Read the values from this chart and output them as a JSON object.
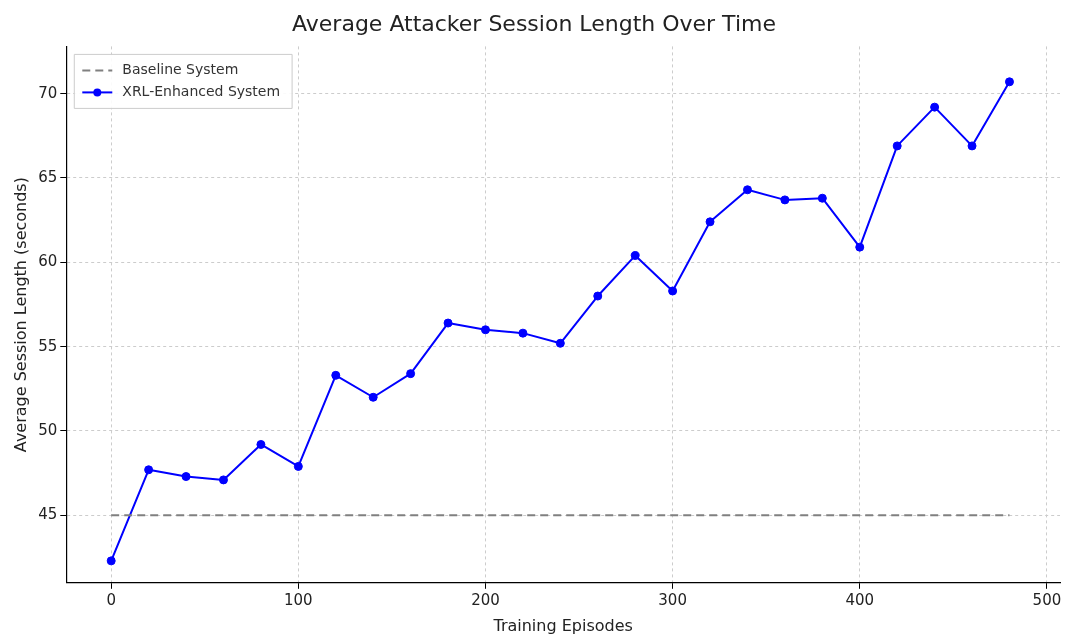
{
  "chart_data": {
    "type": "line",
    "title": "Average Attacker Session Length Over Time",
    "xlabel": "Training Episodes",
    "ylabel": "Average Session Length (seconds)",
    "xlim": [
      -24,
      507
    ],
    "xticks": [
      0,
      100,
      200,
      300,
      400,
      500
    ],
    "ylim": [
      41,
      72.8
    ],
    "yticks": [
      45,
      50,
      55,
      60,
      65,
      70
    ],
    "grid": true,
    "legend": "top left",
    "series": [
      {
        "name": "Baseline System",
        "color": "#808080",
        "line_style": "dashed",
        "marker": "none",
        "x": [
          0,
          480
        ],
        "values": [
          45,
          45
        ]
      },
      {
        "name": "XRL-Enhanced System",
        "color": "#0000ff",
        "line_style": "solid",
        "marker": "circle",
        "x": [
          0,
          20,
          40,
          60,
          80,
          100,
          120,
          140,
          160,
          180,
          200,
          220,
          240,
          260,
          280,
          300,
          320,
          340,
          360,
          380,
          400,
          420,
          440,
          460,
          480
        ],
        "values": [
          42.3,
          47.7,
          47.3,
          47.1,
          49.2,
          47.9,
          53.3,
          52.0,
          53.4,
          56.4,
          56.0,
          55.8,
          55.2,
          58.0,
          60.4,
          58.3,
          62.4,
          64.3,
          63.7,
          63.8,
          60.9,
          66.9,
          69.2,
          66.9,
          70.7
        ]
      }
    ]
  }
}
